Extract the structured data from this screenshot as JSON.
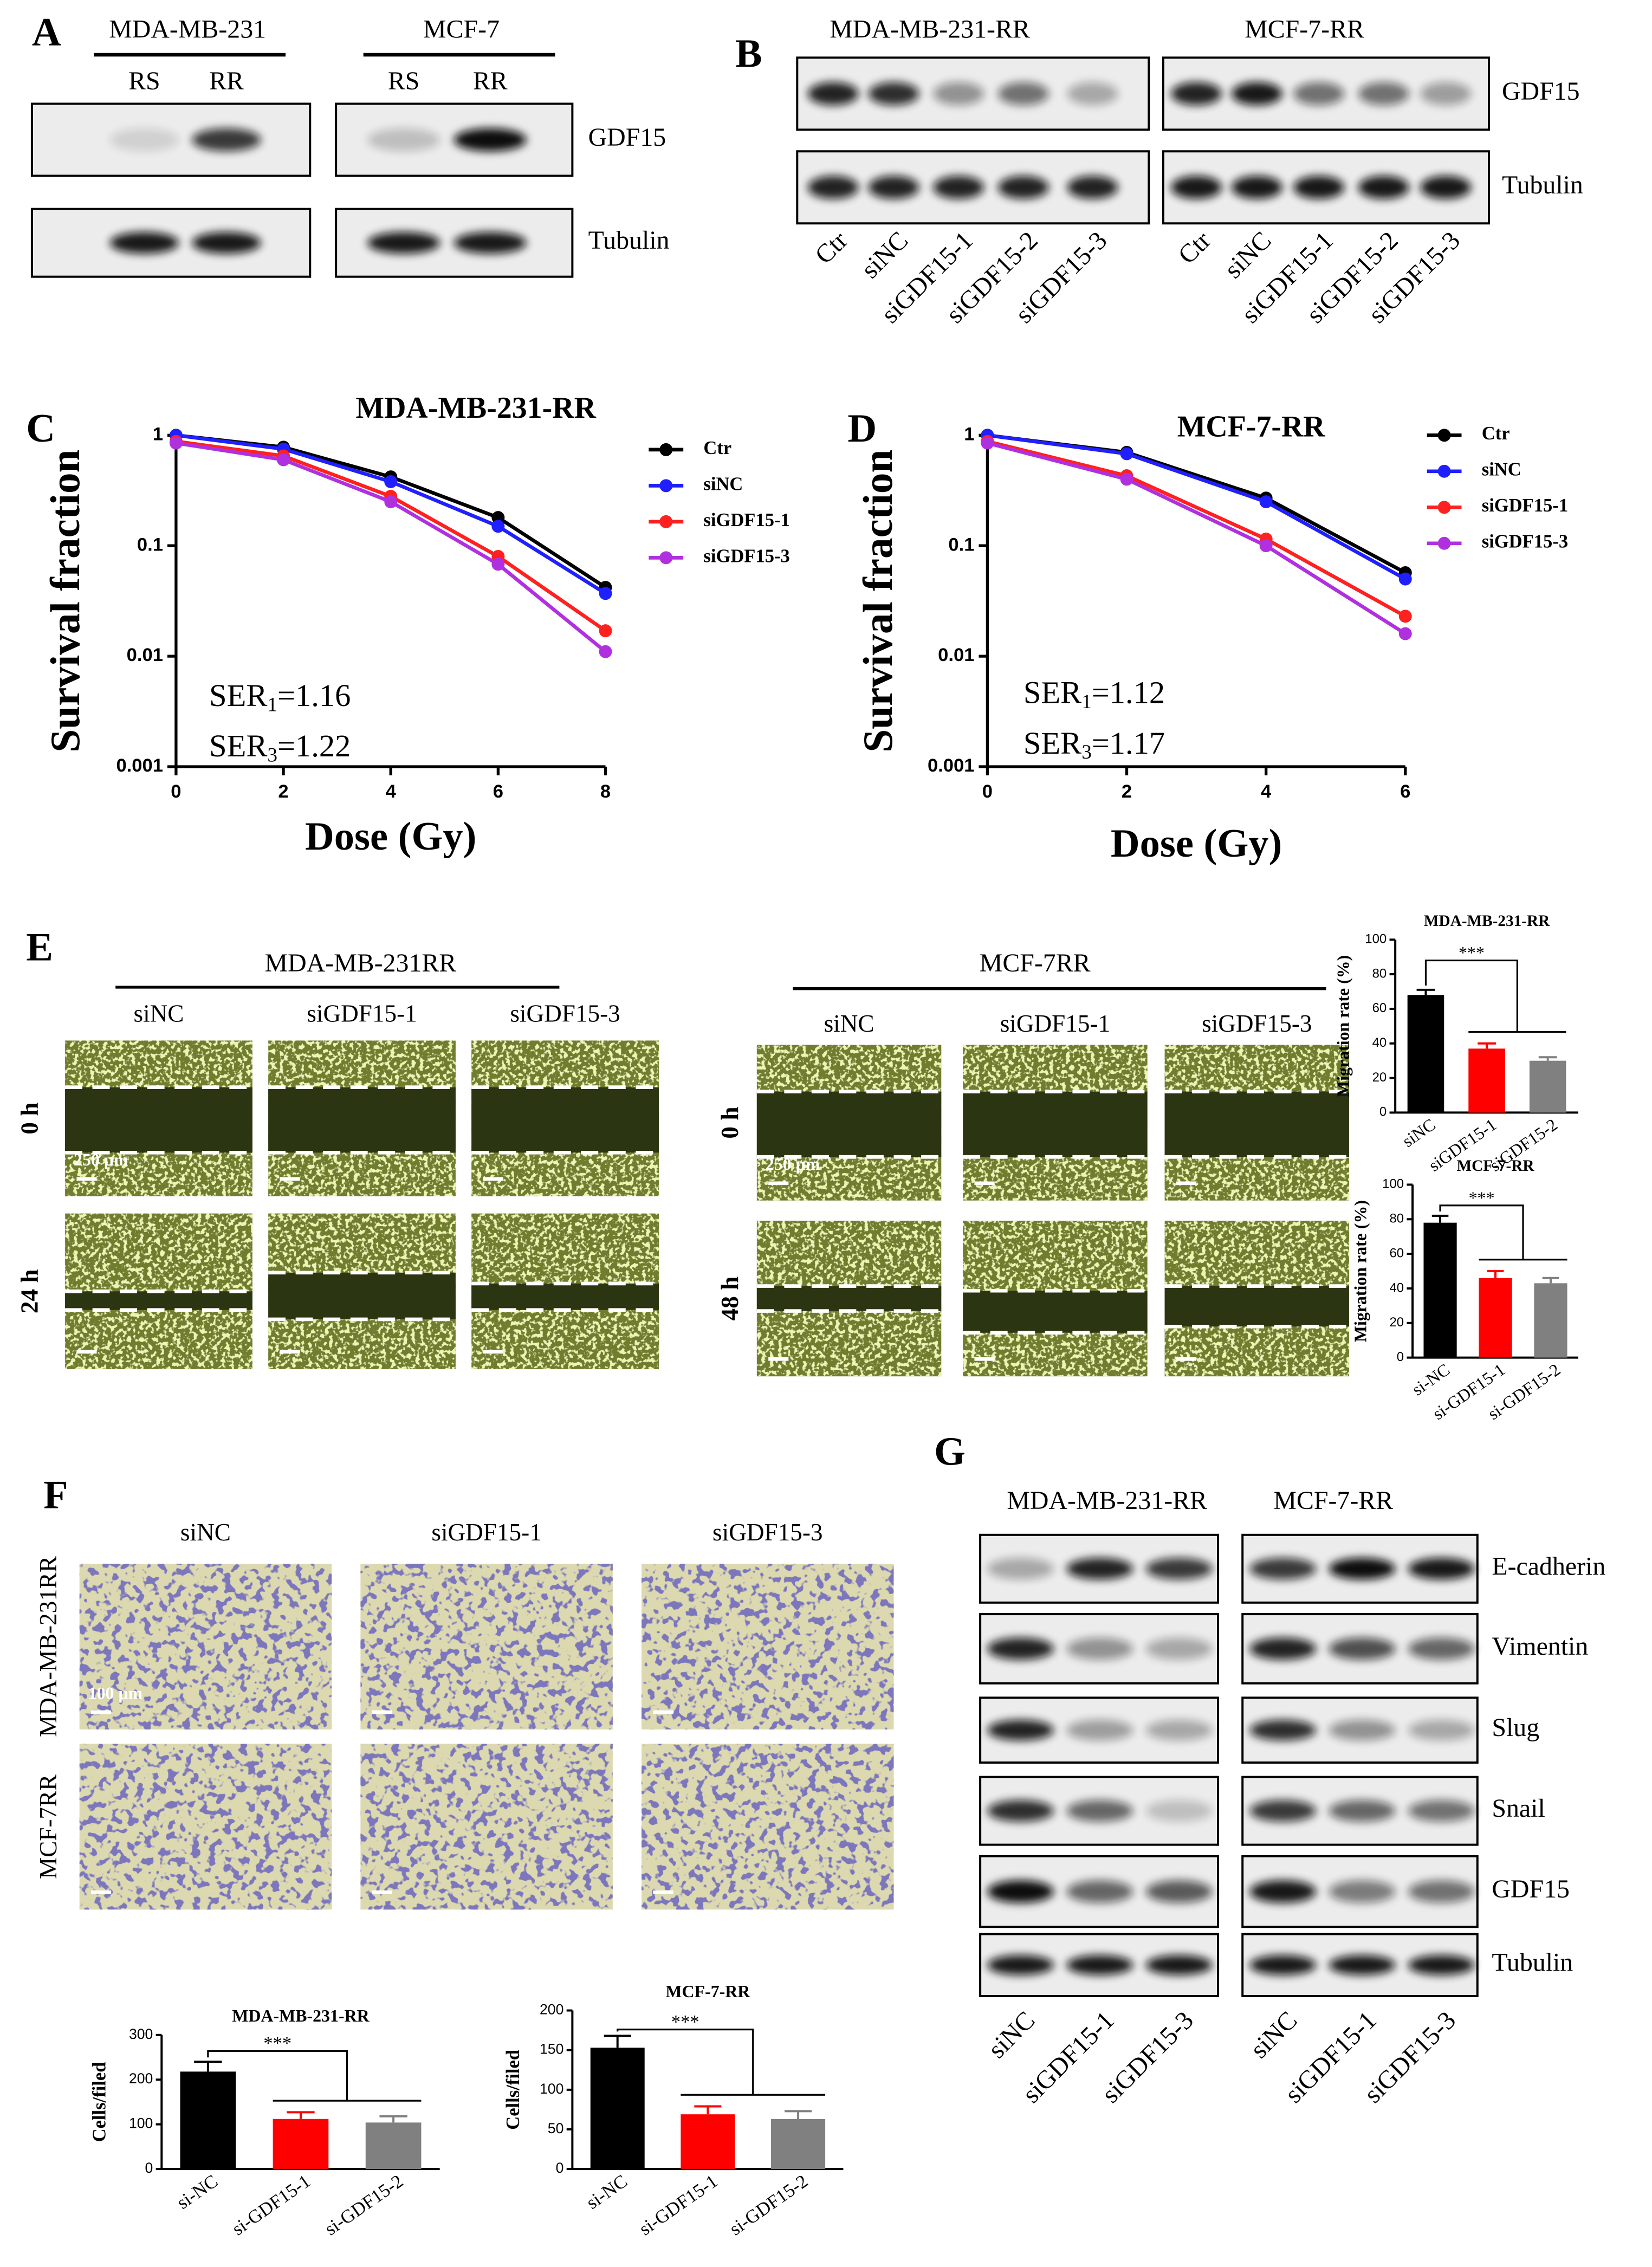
{
  "letters": [
    "A",
    "B",
    "C",
    "D",
    "E",
    "F",
    "G"
  ],
  "blots": [
    {
      "groups": [
        {
          "title": "MDA-MB-231",
          "lanes": [
            "RS",
            "RR"
          ]
        },
        {
          "title": "MCF-7",
          "lanes": [
            "RS",
            "RR"
          ]
        }
      ],
      "rows": [
        "GDF15",
        "Tubulin"
      ]
    },
    {
      "groups": [
        {
          "title": "MDA-MB-231-RR",
          "lanes": [
            "Ctr",
            "siNC",
            "siGDF15-1",
            "siGDF15-2",
            "siGDF15-3"
          ]
        },
        {
          "title": "MCF-7-RR",
          "lanes": [
            "Ctr",
            "siNC",
            "siGDF15-1",
            "siGDF15-2",
            "siGDF15-3"
          ]
        }
      ],
      "rows": [
        "GDF15",
        "Tubulin"
      ]
    },
    {
      "groups": [
        {
          "title": "MDA-MB-231-RR",
          "lanes": [
            "siNC",
            "siGDF15-1",
            "siGDF15-3"
          ]
        },
        {
          "title": "MCF-7-RR",
          "lanes": [
            "siNC",
            "siGDF15-1",
            "siGDF15-3"
          ]
        }
      ],
      "rows": [
        "E-cadherin",
        "Vimentin",
        "Slug",
        "Snail",
        "GDF15",
        "Tubulin"
      ]
    }
  ],
  "micrographs": [
    {
      "title": "MDA-MB-231RR",
      "columns": [
        "siNC",
        "siGDF15-1",
        "siGDF15-3"
      ],
      "rows": [
        "0 h",
        "24 h"
      ],
      "scale": "250 μm"
    },
    {
      "title": "MCF-7RR",
      "columns": [
        "siNC",
        "siGDF15-1",
        "siGDF15-3"
      ],
      "rows": [
        "0 h",
        "48 h"
      ],
      "scale": "250 μm"
    },
    {
      "columns": [
        "siNC",
        "siGDF15-1",
        "siGDF15-3"
      ],
      "rows": [
        "MDA-MB-231RR",
        "MCF-7RR"
      ],
      "scale": "100 μm"
    }
  ],
  "chart_data": [
    {
      "type": "line",
      "title": "MDA-MB-231-RR",
      "x_label": "Dose (Gy)",
      "y_label": "Survival fraction",
      "log_y": true,
      "x": [
        0,
        2,
        4,
        6,
        8
      ],
      "xlim": [
        0,
        8
      ],
      "xticks": [
        0,
        2,
        4,
        6,
        8
      ],
      "ylim": [
        0.001,
        1
      ],
      "yticks": [
        0.001,
        0.01,
        0.1,
        1
      ],
      "series": [
        {
          "name": "Ctr",
          "color": "#000000",
          "values": [
            1,
            0.78,
            0.42,
            0.18,
            0.042
          ]
        },
        {
          "name": "siNC",
          "color": "#1f1fff",
          "values": [
            1,
            0.75,
            0.38,
            0.15,
            0.037
          ]
        },
        {
          "name": "siGDF15-1",
          "color": "#ff2020",
          "values": [
            0.88,
            0.65,
            0.28,
            0.08,
            0.017
          ]
        },
        {
          "name": "siGDF15-3",
          "color": "#b030e0",
          "values": [
            0.85,
            0.6,
            0.25,
            0.068,
            0.011
          ]
        }
      ],
      "annotations": [
        {
          "text": "SER",
          "sub": "1",
          "rest": "=1.16"
        },
        {
          "text": "SER",
          "sub": "3",
          "rest": "=1.22"
        }
      ]
    },
    {
      "type": "line",
      "title": "MCF-7-RR",
      "x_label": "Dose (Gy)",
      "y_label": "Survival fraction",
      "log_y": true,
      "x": [
        0,
        2,
        4,
        6
      ],
      "xlim": [
        0,
        6
      ],
      "xticks": [
        0,
        2,
        4,
        6
      ],
      "ylim": [
        0.001,
        1
      ],
      "yticks": [
        0.001,
        0.01,
        0.1,
        1
      ],
      "series": [
        {
          "name": "Ctr",
          "color": "#000000",
          "values": [
            1,
            0.7,
            0.27,
            0.057
          ]
        },
        {
          "name": "siNC",
          "color": "#1f1fff",
          "values": [
            1,
            0.68,
            0.25,
            0.05
          ]
        },
        {
          "name": "siGDF15-1",
          "color": "#ff2020",
          "values": [
            0.88,
            0.43,
            0.115,
            0.023
          ]
        },
        {
          "name": "siGDF15-3",
          "color": "#b030e0",
          "values": [
            0.85,
            0.4,
            0.1,
            0.016
          ]
        }
      ],
      "annotations": [
        {
          "text": "SER",
          "sub": "1",
          "rest": "=1.12"
        },
        {
          "text": "SER",
          "sub": "3",
          "rest": "=1.17"
        }
      ]
    },
    {
      "type": "bar",
      "title": "MDA-MB-231-RR",
      "y_label": "Migration rate (%)",
      "categories": [
        "siNC",
        "siGDF15-1",
        "siGDF15-2"
      ],
      "values": [
        68,
        37,
        30
      ],
      "errors": [
        3,
        3,
        2
      ],
      "colors": [
        "#000000",
        "#ff0000",
        "#808080"
      ],
      "ylim": [
        0,
        100
      ],
      "yticks": [
        0,
        20,
        40,
        60,
        80,
        100
      ],
      "significance": "***"
    },
    {
      "type": "bar",
      "title": "MCF-7-RR",
      "y_label": "Migration rate (%)",
      "categories": [
        "si-NC",
        "si-GDF15-1",
        "si-GDF15-2"
      ],
      "values": [
        78,
        46,
        43
      ],
      "errors": [
        4,
        4,
        3
      ],
      "colors": [
        "#000000",
        "#ff0000",
        "#808080"
      ],
      "ylim": [
        0,
        100
      ],
      "yticks": [
        0,
        20,
        40,
        60,
        80,
        100
      ],
      "significance": "***"
    },
    {
      "type": "bar",
      "title": "MDA-MB-231-RR",
      "y_label": "Cells/filed",
      "categories": [
        "si-NC",
        "si-GDF15-1",
        "si-GDF15-2"
      ],
      "values": [
        218,
        112,
        104
      ],
      "errors": [
        22,
        15,
        14
      ],
      "colors": [
        "#000000",
        "#ff0000",
        "#808080"
      ],
      "ylim": [
        0,
        300
      ],
      "yticks": [
        0,
        100,
        200,
        300
      ],
      "significance": "***"
    },
    {
      "type": "bar",
      "title": "MCF-7-RR",
      "y_label": "Cells/filed",
      "categories": [
        "si-NC",
        "si-GDF15-1",
        "si-GDF15-2"
      ],
      "values": [
        153,
        69,
        63
      ],
      "errors": [
        15,
        10,
        10
      ],
      "colors": [
        "#000000",
        "#ff0000",
        "#808080"
      ],
      "ylim": [
        0,
        200
      ],
      "yticks": [
        0,
        50,
        100,
        150,
        200
      ],
      "significance": "***"
    }
  ]
}
